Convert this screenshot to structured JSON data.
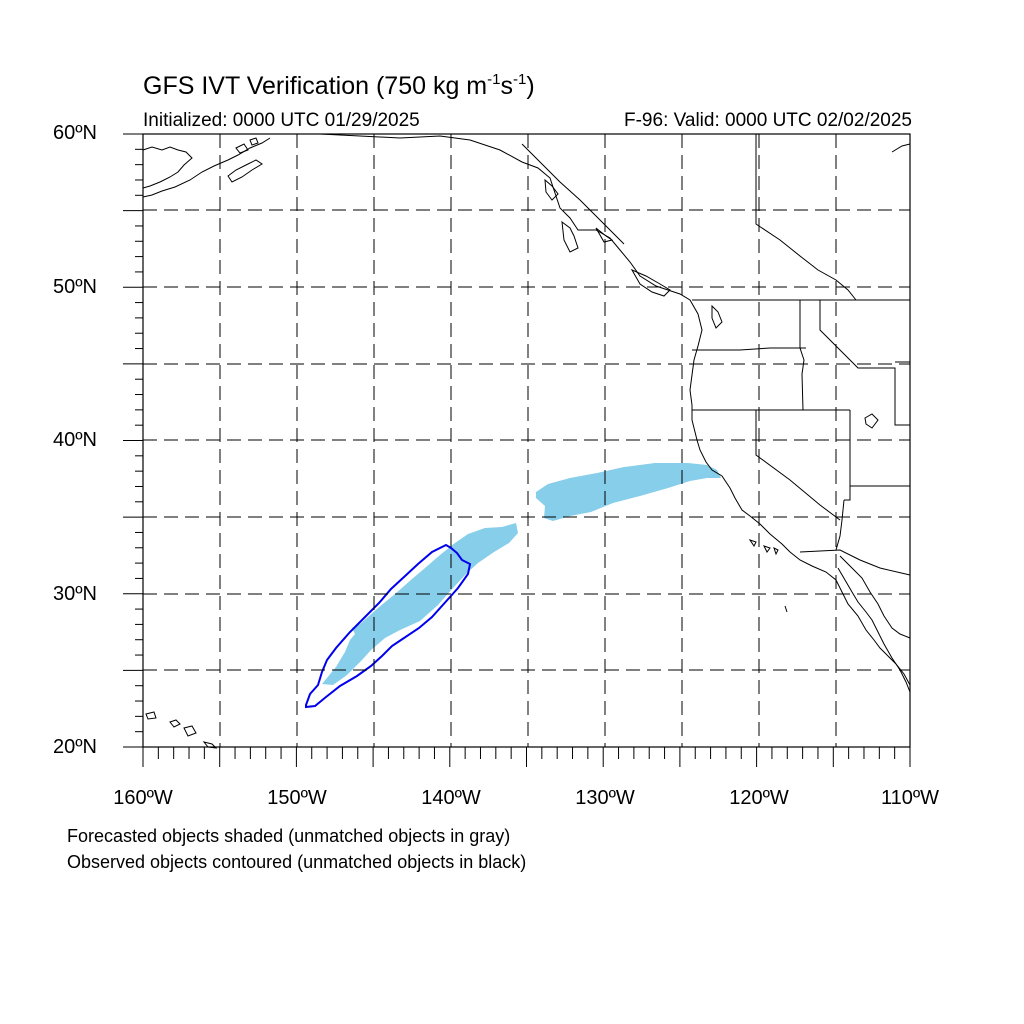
{
  "title": {
    "main": "GFS IVT Verification (750 kg m",
    "exp1": "-1",
    "mid": "s",
    "exp2": "-1",
    "close": ")"
  },
  "initialized": "Initialized: 0000 UTC 01/29/2025",
  "valid": "F-96: Valid: 0000 UTC 02/02/2025",
  "lat_labels": [
    "60ºN",
    "50ºN",
    "40ºN",
    "30ºN",
    "20ºN"
  ],
  "lon_labels": [
    "160ºW",
    "150ºW",
    "140ºW",
    "130ºW",
    "120ºW",
    "110ºW"
  ],
  "notes": [
    "Forecasted objects shaded (unmatched objects in gray)",
    "Observed objects contoured (unmatched objects in black)"
  ],
  "colors": {
    "forecast_fill": "#87ceea",
    "observed_contour": "#0000ee",
    "coast": "#000000",
    "grid": "#000000"
  },
  "map_extent": {
    "lon_min": -160,
    "lon_max": -110,
    "lat_min": 20,
    "lat_max": 60
  }
}
